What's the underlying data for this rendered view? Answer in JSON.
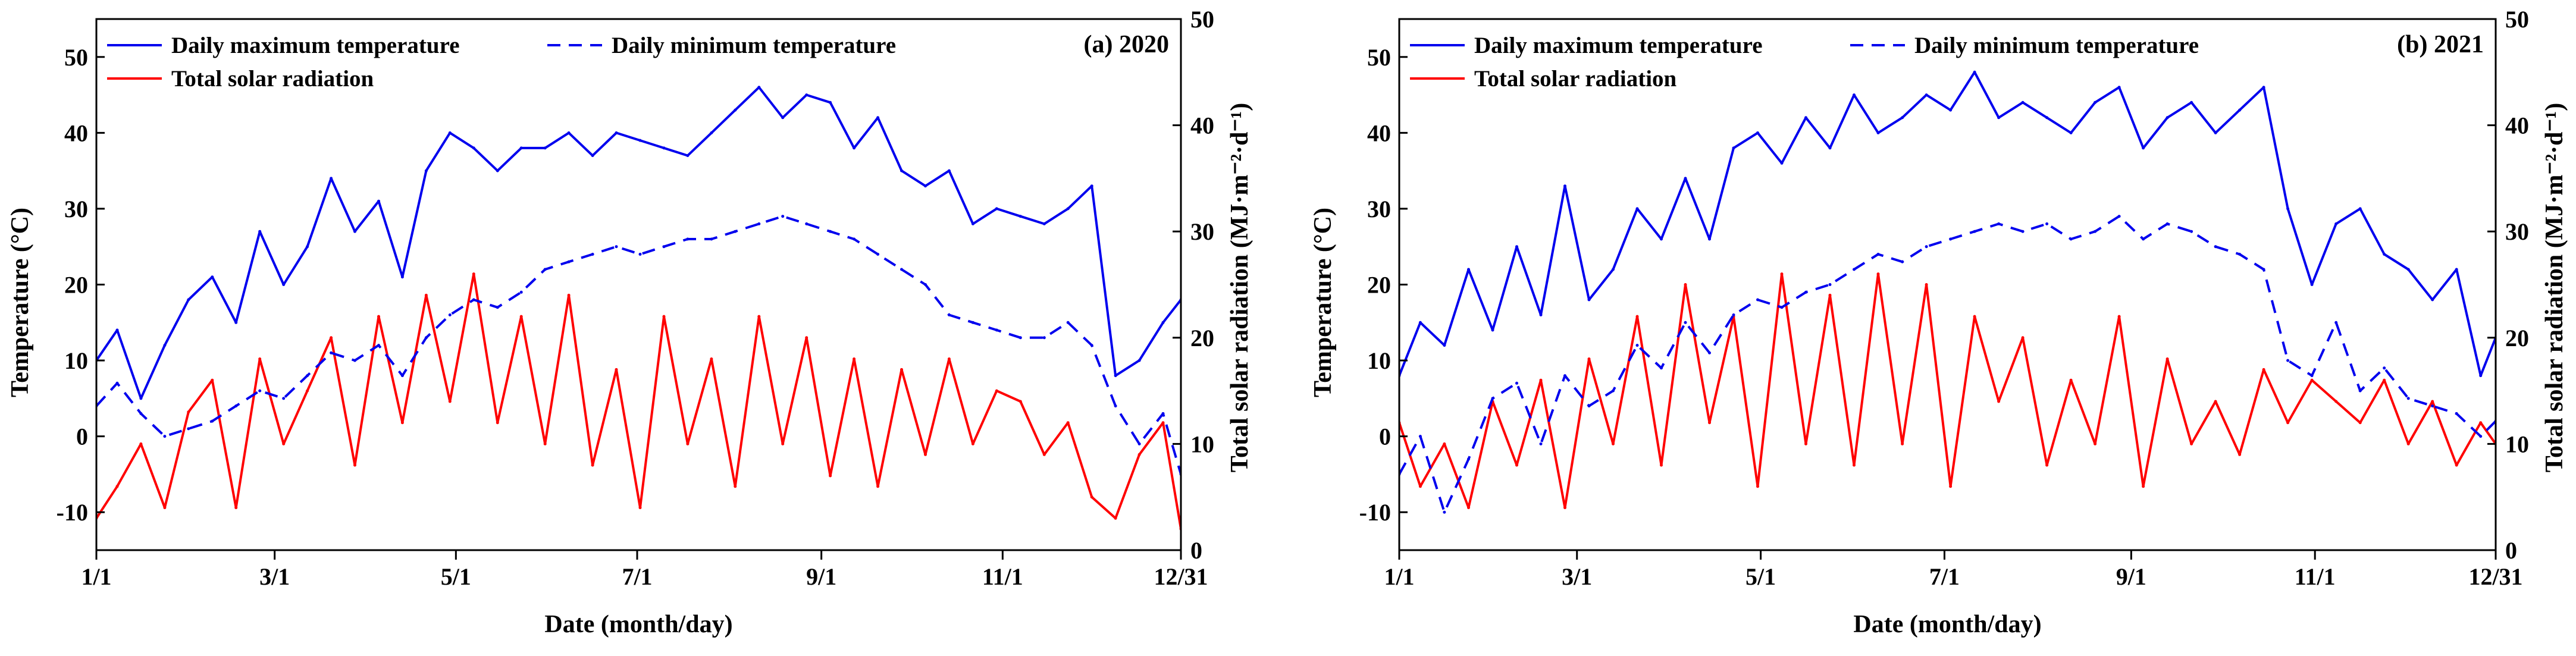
{
  "figure": {
    "colors": {
      "temperature": "#0000ee",
      "radiation": "#ff0000",
      "axes": "#000000"
    }
  },
  "legend": {
    "max_label": "Daily maximum temperature",
    "min_label": "Daily minimum temperature",
    "rad_label": "Total solar radiation"
  },
  "chart_data": [
    {
      "type": "line",
      "panel_label": "(a) 2020",
      "xlabel": "Date (month/day)",
      "ylabel": "Temperature (°C)",
      "y2label": "Total solar radiation  (MJ·m⁻²·d⁻¹)",
      "categories": [
        "1/1",
        "3/1",
        "5/1",
        "7/1",
        "9/1",
        "11/1",
        "12/31"
      ],
      "category_days": [
        1,
        61,
        122,
        183,
        245,
        306,
        366
      ],
      "xlim": [
        1,
        366
      ],
      "ylim": [
        -15,
        55
      ],
      "y2lim": [
        0,
        50
      ],
      "yticks": [
        -10,
        0,
        10,
        20,
        30,
        40,
        50
      ],
      "y2ticks": [
        0,
        10,
        20,
        30,
        40,
        50
      ],
      "series": [
        {
          "name": "Daily maximum temperature",
          "axis": "left",
          "style": "solid",
          "x": [
            1,
            8,
            16,
            24,
            32,
            40,
            48,
            56,
            64,
            72,
            80,
            88,
            96,
            104,
            112,
            120,
            128,
            136,
            144,
            152,
            160,
            168,
            176,
            184,
            192,
            200,
            208,
            216,
            224,
            232,
            240,
            248,
            256,
            264,
            272,
            280,
            288,
            296,
            304,
            312,
            320,
            328,
            336,
            344,
            352,
            360,
            366
          ],
          "values": [
            10,
            14,
            5,
            12,
            18,
            21,
            15,
            27,
            20,
            25,
            34,
            27,
            31,
            21,
            35,
            40,
            38,
            35,
            38,
            38,
            40,
            37,
            40,
            39,
            38,
            37,
            40,
            43,
            46,
            42,
            45,
            44,
            38,
            42,
            35,
            33,
            35,
            28,
            30,
            29,
            28,
            30,
            33,
            8,
            10,
            15,
            18
          ]
        },
        {
          "name": "Daily minimum temperature",
          "axis": "left",
          "style": "dashed",
          "x": [
            1,
            8,
            16,
            24,
            32,
            40,
            48,
            56,
            64,
            72,
            80,
            88,
            96,
            104,
            112,
            120,
            128,
            136,
            144,
            152,
            160,
            168,
            176,
            184,
            192,
            200,
            208,
            216,
            224,
            232,
            240,
            248,
            256,
            264,
            272,
            280,
            288,
            296,
            304,
            312,
            320,
            328,
            336,
            344,
            352,
            360,
            366
          ],
          "values": [
            4,
            7,
            3,
            0,
            1,
            2,
            4,
            6,
            5,
            8,
            11,
            10,
            12,
            8,
            13,
            16,
            18,
            17,
            19,
            22,
            23,
            24,
            25,
            24,
            25,
            26,
            26,
            27,
            28,
            29,
            28,
            27,
            26,
            24,
            22,
            20,
            16,
            15,
            14,
            13,
            13,
            15,
            12,
            4,
            -1,
            3,
            -5
          ]
        },
        {
          "name": "Total solar radiation",
          "axis": "right",
          "style": "solid",
          "x": [
            1,
            8,
            16,
            24,
            32,
            40,
            48,
            56,
            64,
            72,
            80,
            88,
            96,
            104,
            112,
            120,
            128,
            136,
            144,
            152,
            160,
            168,
            176,
            184,
            192,
            200,
            208,
            216,
            224,
            232,
            240,
            248,
            256,
            264,
            272,
            280,
            288,
            296,
            304,
            312,
            320,
            328,
            336,
            344,
            352,
            360,
            366
          ],
          "values": [
            3,
            6,
            10,
            4,
            13,
            16,
            4,
            18,
            10,
            15,
            20,
            8,
            22,
            12,
            24,
            14,
            26,
            12,
            22,
            10,
            24,
            8,
            17,
            4,
            22,
            10,
            18,
            6,
            22,
            10,
            20,
            7,
            18,
            6,
            17,
            9,
            18,
            10,
            15,
            14,
            9,
            12,
            5,
            3,
            9,
            12,
            2
          ]
        }
      ]
    },
    {
      "type": "line",
      "panel_label": "(b) 2021",
      "xlabel": "Date (month/day)",
      "ylabel": "Temperature (°C)",
      "y2label": "Total solar radiation  (MJ·m⁻²·d⁻¹)",
      "categories": [
        "1/1",
        "3/1",
        "5/1",
        "7/1",
        "9/1",
        "11/1",
        "12/31"
      ],
      "category_days": [
        1,
        60,
        121,
        182,
        244,
        305,
        365
      ],
      "xlim": [
        1,
        365
      ],
      "ylim": [
        -15,
        55
      ],
      "y2lim": [
        0,
        50
      ],
      "yticks": [
        -10,
        0,
        10,
        20,
        30,
        40,
        50
      ],
      "y2ticks": [
        0,
        10,
        20,
        30,
        40,
        50
      ],
      "series": [
        {
          "name": "Daily maximum temperature",
          "axis": "left",
          "style": "solid",
          "x": [
            1,
            8,
            16,
            24,
            32,
            40,
            48,
            56,
            64,
            72,
            80,
            88,
            96,
            104,
            112,
            120,
            128,
            136,
            144,
            152,
            160,
            168,
            176,
            184,
            192,
            200,
            208,
            216,
            224,
            232,
            240,
            248,
            256,
            264,
            272,
            280,
            288,
            296,
            304,
            312,
            320,
            328,
            336,
            344,
            352,
            360,
            365
          ],
          "values": [
            8,
            15,
            12,
            22,
            14,
            25,
            16,
            33,
            18,
            22,
            30,
            26,
            34,
            26,
            38,
            40,
            36,
            42,
            38,
            45,
            40,
            42,
            45,
            43,
            48,
            42,
            44,
            42,
            40,
            44,
            46,
            38,
            42,
            44,
            40,
            43,
            46,
            30,
            20,
            28,
            30,
            24,
            22,
            18,
            22,
            8,
            13
          ]
        },
        {
          "name": "Daily minimum temperature",
          "axis": "left",
          "style": "dashed",
          "x": [
            1,
            8,
            16,
            24,
            32,
            40,
            48,
            56,
            64,
            72,
            80,
            88,
            96,
            104,
            112,
            120,
            128,
            136,
            144,
            152,
            160,
            168,
            176,
            184,
            192,
            200,
            208,
            216,
            224,
            232,
            240,
            248,
            256,
            264,
            272,
            280,
            288,
            296,
            304,
            312,
            320,
            328,
            336,
            344,
            352,
            360,
            365
          ],
          "values": [
            -5,
            0,
            -10,
            -3,
            5,
            7,
            -1,
            8,
            4,
            6,
            12,
            9,
            15,
            11,
            16,
            18,
            17,
            19,
            20,
            22,
            24,
            23,
            25,
            26,
            27,
            28,
            27,
            28,
            26,
            27,
            29,
            26,
            28,
            27,
            25,
            24,
            22,
            10,
            8,
            15,
            6,
            9,
            5,
            4,
            3,
            0,
            2
          ]
        },
        {
          "name": "Total solar radiation",
          "axis": "right",
          "style": "solid",
          "x": [
            1,
            8,
            16,
            24,
            32,
            40,
            48,
            56,
            64,
            72,
            80,
            88,
            96,
            104,
            112,
            120,
            128,
            136,
            144,
            152,
            160,
            168,
            176,
            184,
            192,
            200,
            208,
            216,
            224,
            232,
            240,
            248,
            256,
            264,
            272,
            280,
            288,
            296,
            304,
            312,
            320,
            328,
            336,
            344,
            352,
            360,
            365
          ],
          "values": [
            12,
            6,
            10,
            4,
            14,
            8,
            16,
            4,
            18,
            10,
            22,
            8,
            25,
            12,
            22,
            6,
            26,
            10,
            24,
            8,
            26,
            10,
            25,
            6,
            22,
            14,
            20,
            8,
            16,
            10,
            22,
            6,
            18,
            10,
            14,
            9,
            17,
            12,
            16,
            14,
            12,
            16,
            10,
            14,
            8,
            12,
            10
          ]
        }
      ]
    }
  ]
}
